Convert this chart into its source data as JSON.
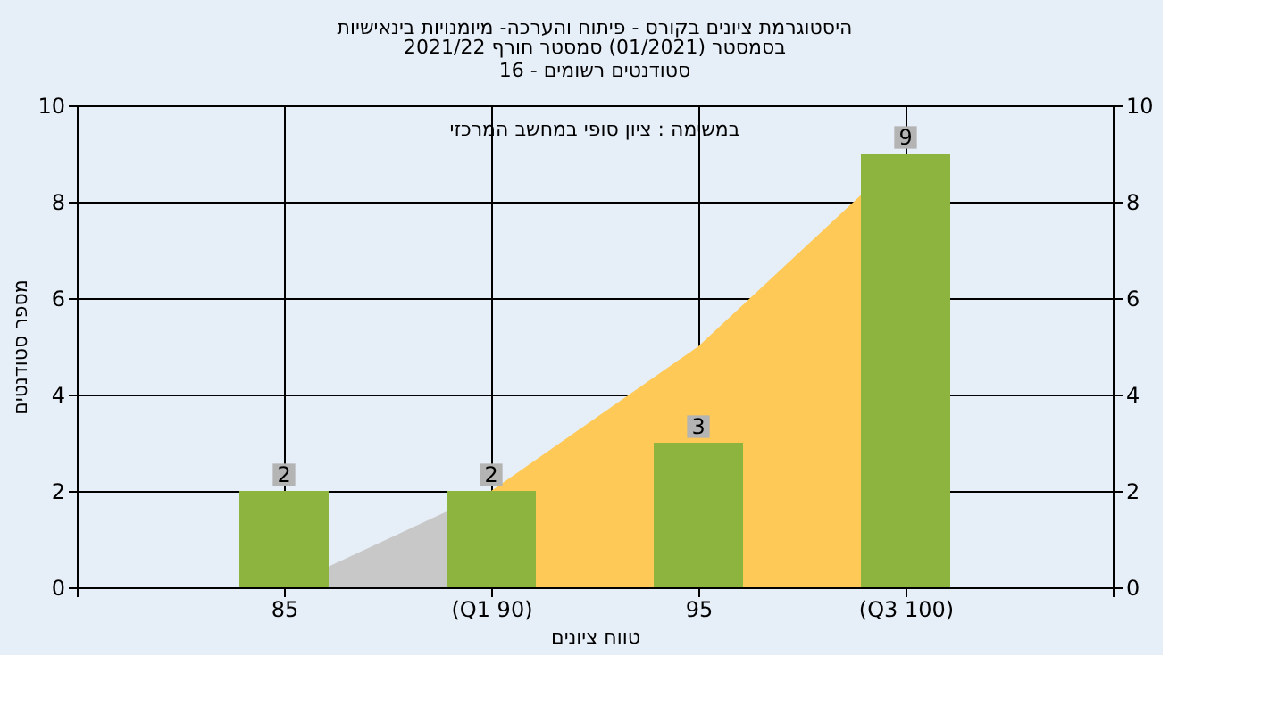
{
  "chart_data": {
    "type": "bar",
    "title": "היסטוגרמת ציונים בקורס - פיתוח והערכה- מיומנויות בינאישיות",
    "subtitle": "בסמסטר  (01/2021)  סמסטר חורף 2021/22\nסטודנטים רשומים - 16",
    "xlabel": "טווח ציונים",
    "ylabel": "מספר סטודנטים",
    "annotations": [
      "במשימה : ציון סופי במחשב המרכזי"
    ],
    "categories": [
      null,
      "85",
      "(Q1 90)",
      "95",
      "(Q3 100)",
      null
    ],
    "series": [
      {
        "type": "area",
        "color": "#c8c8c8",
        "values": [
          null,
          0,
          2,
          null,
          null,
          null
        ]
      },
      {
        "type": "area",
        "color": "#fec957",
        "values": [
          null,
          null,
          2,
          5,
          9,
          null
        ]
      },
      {
        "color": "#8db43e",
        "values": [
          null,
          2,
          2,
          3,
          9,
          null
        ],
        "value_labels": [
          null,
          "2",
          "2",
          "3",
          "9",
          null
        ]
      }
    ],
    "ylim": [
      0,
      10
    ],
    "yticks": [
      0,
      2,
      4,
      6,
      8,
      10
    ],
    "y2lim": [
      0,
      10
    ],
    "y2ticks": [
      0,
      2,
      4,
      6,
      8,
      10
    ],
    "grid": true
  }
}
